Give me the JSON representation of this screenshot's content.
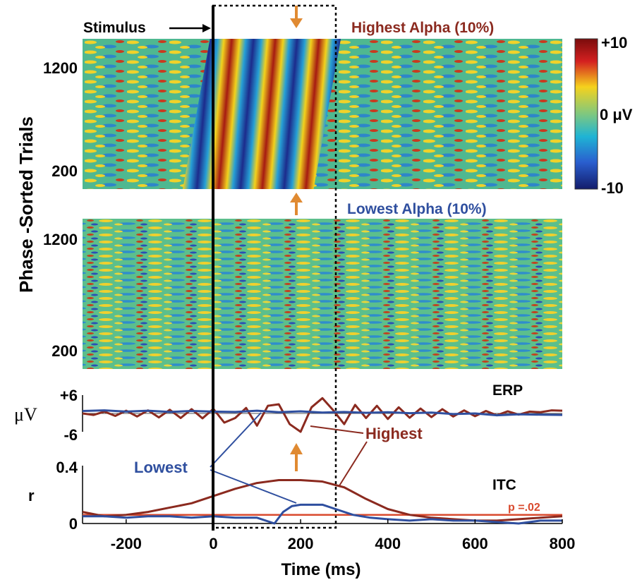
{
  "chart_data": [
    {
      "type": "heatmap",
      "panel": "top",
      "title": "Highest Alpha (10%)",
      "ylabel": "Phase -Sorted Trials",
      "yticks": [
        1200,
        200
      ],
      "ylim": [
        0,
        1400
      ],
      "colorbar": {
        "max_label": "+10",
        "mid_label": "0 μV",
        "min_label": "-10",
        "range": [
          -10,
          10
        ]
      },
      "annotation": "Stimulus",
      "wave_period_ms": 100
    },
    {
      "type": "heatmap",
      "panel": "middle",
      "title": "Lowest  Alpha (10%)",
      "yticks": [
        1200,
        200
      ],
      "ylim": [
        0,
        1400
      ]
    },
    {
      "type": "line",
      "panel": "erp",
      "title": "ERP",
      "ylabel": "μV",
      "yticks": [
        "+6",
        "-6"
      ],
      "ylim": [
        -6,
        6
      ],
      "xlim": [
        -300,
        800
      ],
      "series": [
        {
          "name": "Highest",
          "color": "#8b2a1f",
          "x": [
            -300,
            -275,
            -250,
            -225,
            -200,
            -175,
            -150,
            -125,
            -100,
            -75,
            -50,
            -25,
            0,
            25,
            50,
            75,
            100,
            125,
            150,
            175,
            200,
            225,
            250,
            275,
            300,
            325,
            350,
            375,
            400,
            425,
            450,
            475,
            500,
            525,
            550,
            575,
            600,
            625,
            650,
            675,
            700,
            725,
            750,
            775,
            800
          ],
          "y": [
            0,
            -0.5,
            0.6,
            -0.8,
            0.9,
            -1,
            1,
            -1.3,
            1.2,
            -1.5,
            1.4,
            -1.6,
            1.5,
            -3,
            -1.5,
            1.8,
            -4,
            2.5,
            3,
            -3.5,
            -6,
            2,
            5,
            1,
            -3.5,
            2.8,
            -1.5,
            2.5,
            -1.8,
            2,
            -1.4,
            1.6,
            -1.2,
            1.4,
            -1,
            1,
            -0.9,
            0.8,
            -0.6,
            0.7,
            -0.4,
            0.6,
            0.4,
            1,
            0.9
          ]
        },
        {
          "name": "Lowest",
          "color": "#2f4f9f",
          "x": [
            -300,
            -250,
            -200,
            -150,
            -100,
            -50,
            0,
            50,
            100,
            150,
            200,
            250,
            300,
            350,
            400,
            450,
            500,
            550,
            600,
            650,
            700,
            750,
            800
          ],
          "y": [
            0.8,
            1,
            0.6,
            0.9,
            0.5,
            0.8,
            0.6,
            0.5,
            0.9,
            0.4,
            0.7,
            0.3,
            0.5,
            0.2,
            0.4,
            0.1,
            0.3,
            -0.2,
            0,
            -0.6,
            -0.3,
            -0.4,
            -0.5
          ]
        }
      ],
      "annotations": [
        "Highest",
        "Lowest"
      ]
    },
    {
      "type": "line",
      "panel": "itc",
      "title": "ITC",
      "ylabel": "r",
      "yticks": [
        "0.4",
        "0"
      ],
      "ylim": [
        0,
        0.4
      ],
      "xlim": [
        -300,
        800
      ],
      "xticks": [
        -200,
        0,
        200,
        400,
        600,
        800
      ],
      "xlabel": "Time (ms)",
      "threshold": {
        "label": "p =.02",
        "value": 0.06,
        "color": "#d94a2e"
      },
      "series": [
        {
          "name": "Highest",
          "color": "#8b2a1f",
          "x": [
            -300,
            -250,
            -200,
            -150,
            -100,
            -50,
            0,
            50,
            100,
            150,
            200,
            250,
            300,
            350,
            400,
            450,
            500,
            550,
            600,
            650,
            700,
            750,
            800
          ],
          "y": [
            0.08,
            0.05,
            0.06,
            0.08,
            0.11,
            0.14,
            0.19,
            0.24,
            0.28,
            0.3,
            0.3,
            0.29,
            0.25,
            0.17,
            0.1,
            0.06,
            0.04,
            0.03,
            0.02,
            0.02,
            0.03,
            0.04,
            0.05
          ]
        },
        {
          "name": "Lowest",
          "color": "#2f4f9f",
          "x": [
            -300,
            -250,
            -200,
            -150,
            -100,
            -50,
            0,
            50,
            100,
            140,
            160,
            180,
            200,
            250,
            280,
            320,
            360,
            400,
            450,
            500,
            550,
            600,
            650,
            700,
            750,
            800
          ],
          "y": [
            0.05,
            0.05,
            0.04,
            0.05,
            0.05,
            0.04,
            0.05,
            0.04,
            0.04,
            0.0,
            0.08,
            0.12,
            0.13,
            0.13,
            0.1,
            0.06,
            0.04,
            0.03,
            0.02,
            0.03,
            0.02,
            0.02,
            0.01,
            0.0,
            0.02,
            0.02
          ]
        }
      ],
      "annotations": [
        "Highest",
        "Lowest"
      ]
    }
  ]
}
